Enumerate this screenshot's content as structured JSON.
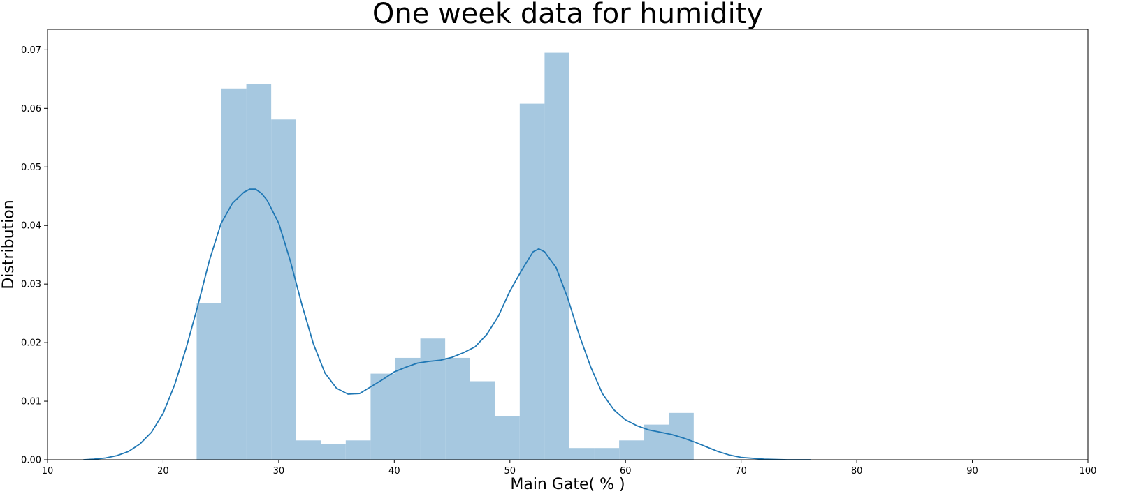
{
  "chart_data": {
    "type": "bar",
    "title": "One week data for humidity",
    "xlabel": "Main Gate( % )",
    "ylabel": "Distribution",
    "xlim": [
      10,
      100
    ],
    "ylim": [
      0,
      0.0735
    ],
    "xticks": [
      "10",
      "20",
      "30",
      "40",
      "50",
      "60",
      "70",
      "80",
      "90",
      "100"
    ],
    "yticks": [
      "0.00",
      "0.01",
      "0.02",
      "0.03",
      "0.04",
      "0.05",
      "0.06",
      "0.07"
    ],
    "grid": false,
    "legend": "none",
    "bar_color": "#a6c8e0",
    "line_color": "#1f77b4",
    "histogram": [
      {
        "x0": 22.9,
        "x1": 25.05,
        "value": 0.0268
      },
      {
        "x0": 25.05,
        "x1": 27.2,
        "value": 0.0634
      },
      {
        "x0": 27.2,
        "x1": 29.35,
        "value": 0.0641
      },
      {
        "x0": 29.35,
        "x1": 31.5,
        "value": 0.0581
      },
      {
        "x0": 31.5,
        "x1": 33.65,
        "value": 0.0033
      },
      {
        "x0": 33.65,
        "x1": 35.8,
        "value": 0.0027
      },
      {
        "x0": 35.8,
        "x1": 37.95,
        "value": 0.0033
      },
      {
        "x0": 37.95,
        "x1": 40.1,
        "value": 0.0147
      },
      {
        "x0": 40.1,
        "x1": 42.25,
        "value": 0.0174
      },
      {
        "x0": 42.25,
        "x1": 44.4,
        "value": 0.0207
      },
      {
        "x0": 44.4,
        "x1": 46.55,
        "value": 0.0174
      },
      {
        "x0": 46.55,
        "x1": 48.7,
        "value": 0.0134
      },
      {
        "x0": 48.7,
        "x1": 50.85,
        "value": 0.0074
      },
      {
        "x0": 50.85,
        "x1": 53.0,
        "value": 0.0608
      },
      {
        "x0": 53.0,
        "x1": 55.15,
        "value": 0.0695
      },
      {
        "x0": 55.15,
        "x1": 57.3,
        "value": 0.002
      },
      {
        "x0": 57.3,
        "x1": 59.45,
        "value": 0.002
      },
      {
        "x0": 59.45,
        "x1": 61.6,
        "value": 0.0033
      },
      {
        "x0": 61.6,
        "x1": 63.75,
        "value": 0.006
      },
      {
        "x0": 63.75,
        "x1": 65.9,
        "value": 0.008
      }
    ],
    "kde": {
      "x": [
        13.1,
        14,
        15,
        16,
        17,
        18,
        19,
        20,
        21,
        22,
        23,
        24,
        25,
        26,
        27,
        27.5,
        28,
        28.5,
        29,
        30,
        31,
        32,
        33,
        34,
        35,
        36,
        37,
        38,
        39,
        40,
        41,
        42,
        43,
        44,
        45,
        46,
        47,
        48,
        49,
        50,
        51,
        52,
        52.5,
        53,
        54,
        55,
        56,
        57,
        58,
        59,
        60,
        61,
        62,
        63,
        64,
        65,
        66,
        67,
        68,
        69,
        70,
        72,
        74,
        76
      ],
      "y": [
        0.0,
        0.0001,
        0.0003,
        0.0007,
        0.0014,
        0.0027,
        0.0047,
        0.0079,
        0.0128,
        0.0191,
        0.0263,
        0.034,
        0.0403,
        0.0438,
        0.0457,
        0.0462,
        0.0462,
        0.0455,
        0.0443,
        0.0404,
        0.034,
        0.0265,
        0.0198,
        0.0148,
        0.0122,
        0.0112,
        0.0113,
        0.0125,
        0.0137,
        0.015,
        0.0158,
        0.0165,
        0.0168,
        0.017,
        0.0175,
        0.0183,
        0.0193,
        0.0214,
        0.0245,
        0.0288,
        0.0323,
        0.0355,
        0.036,
        0.0355,
        0.0328,
        0.0276,
        0.0213,
        0.0158,
        0.0113,
        0.0085,
        0.0068,
        0.0058,
        0.0051,
        0.0047,
        0.0043,
        0.0037,
        0.003,
        0.0022,
        0.0014,
        0.0008,
        0.0004,
        0.0001,
        0.0,
        0.0
      ]
    }
  }
}
